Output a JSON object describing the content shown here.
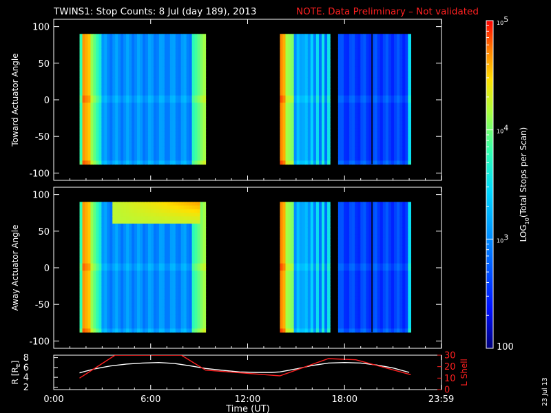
{
  "header": {
    "title": "TWINS1: Stop Counts:  8 Jul (day 189), 2013",
    "note": "NOTE. Data Preliminary – Not validated",
    "note_color": "#ff2020"
  },
  "side_date": "23 Jul 13",
  "chart_data": [
    {
      "type": "heatmap",
      "name": "toward",
      "ylabel": "Toward Actuator Angle",
      "ylim": [
        -110,
        110
      ],
      "yticks": [
        -100,
        -50,
        0,
        50,
        100
      ],
      "xlim": [
        0,
        24
      ],
      "angle_range": [
        -88,
        90
      ],
      "segments": [
        {
          "x0": 1.6,
          "x1": 9.4,
          "pattern": "quiet"
        },
        {
          "x0": 14.0,
          "x1": 17.1,
          "pattern": "edge_bands"
        },
        {
          "x0": 17.6,
          "x1": 22.1,
          "pattern": "deep_blue",
          "gap_at": 19.7
        }
      ]
    },
    {
      "type": "heatmap",
      "name": "away",
      "ylabel": "Away Actuator Angle",
      "ylim": [
        -110,
        110
      ],
      "yticks": [
        -100,
        -50,
        0,
        50,
        100
      ],
      "xlim": [
        0,
        24
      ],
      "angle_range": [
        -88,
        90
      ],
      "segments": [
        {
          "x0": 1.6,
          "x1": 9.4,
          "pattern": "upper_streak"
        },
        {
          "x0": 14.0,
          "x1": 17.1,
          "pattern": "edge_bands"
        },
        {
          "x0": 17.6,
          "x1": 22.1,
          "pattern": "deep_blue",
          "gap_at": 19.7
        }
      ]
    },
    {
      "type": "line",
      "name": "orbit",
      "ylabel_left": "R [R",
      "ylabel_left_sub": "E",
      "ylabel_right": "L Shell",
      "ylim_left": [
        1.5,
        8.5
      ],
      "yticks_left": [
        2,
        4,
        6,
        8
      ],
      "ylim_right": [
        0,
        30
      ],
      "yticks_right": [
        0,
        10,
        20,
        30
      ],
      "xlim": [
        0,
        24
      ],
      "series": [
        {
          "axis": "left",
          "color": "#ffffff",
          "x": [
            1.6,
            2.5,
            3.5,
            4.5,
            5.5,
            6.5,
            7.5,
            8.5,
            9.4,
            10.5,
            11.5,
            12.5,
            13.5,
            14.0,
            15.0,
            16.0,
            17.0,
            18.0,
            19.0,
            20.0,
            21.0,
            22.0
          ],
          "y": [
            4.9,
            5.7,
            6.3,
            6.7,
            6.9,
            7.0,
            6.8,
            6.3,
            5.8,
            5.4,
            5.1,
            5.0,
            5.0,
            5.1,
            5.7,
            6.4,
            6.9,
            7.0,
            6.9,
            6.5,
            5.9,
            5.0
          ]
        },
        {
          "axis": "right",
          "color": "#ff2020",
          "x": [
            1.6,
            3.8,
            7.9,
            9.4,
            14.0,
            17.0,
            18.7,
            22.1
          ],
          "y": [
            10,
            30,
            30,
            17,
            12,
            27,
            26,
            13
          ]
        }
      ]
    }
  ],
  "xaxis": {
    "label": "Time (UT)",
    "ticks": [
      {
        "t": 0,
        "label": "0:00"
      },
      {
        "t": 6,
        "label": "6:00"
      },
      {
        "t": 12,
        "label": "12:00"
      },
      {
        "t": 18,
        "label": "18:00"
      },
      {
        "t": 23.983,
        "label": "23:59"
      }
    ]
  },
  "colorbar": {
    "label_prefix": "LOG",
    "label_sub": "10",
    "label_suffix": "(Total Stops per Scan)",
    "range_log10": [
      2,
      5
    ],
    "major": [
      {
        "v": 5,
        "label_base": "10",
        "label_exp": "5"
      },
      {
        "v": 4,
        "label_base": "10",
        "label_exp": "4"
      },
      {
        "v": 3,
        "label_base": "10",
        "label_exp": "3"
      },
      {
        "v": 2,
        "label_plain": "100"
      }
    ]
  }
}
